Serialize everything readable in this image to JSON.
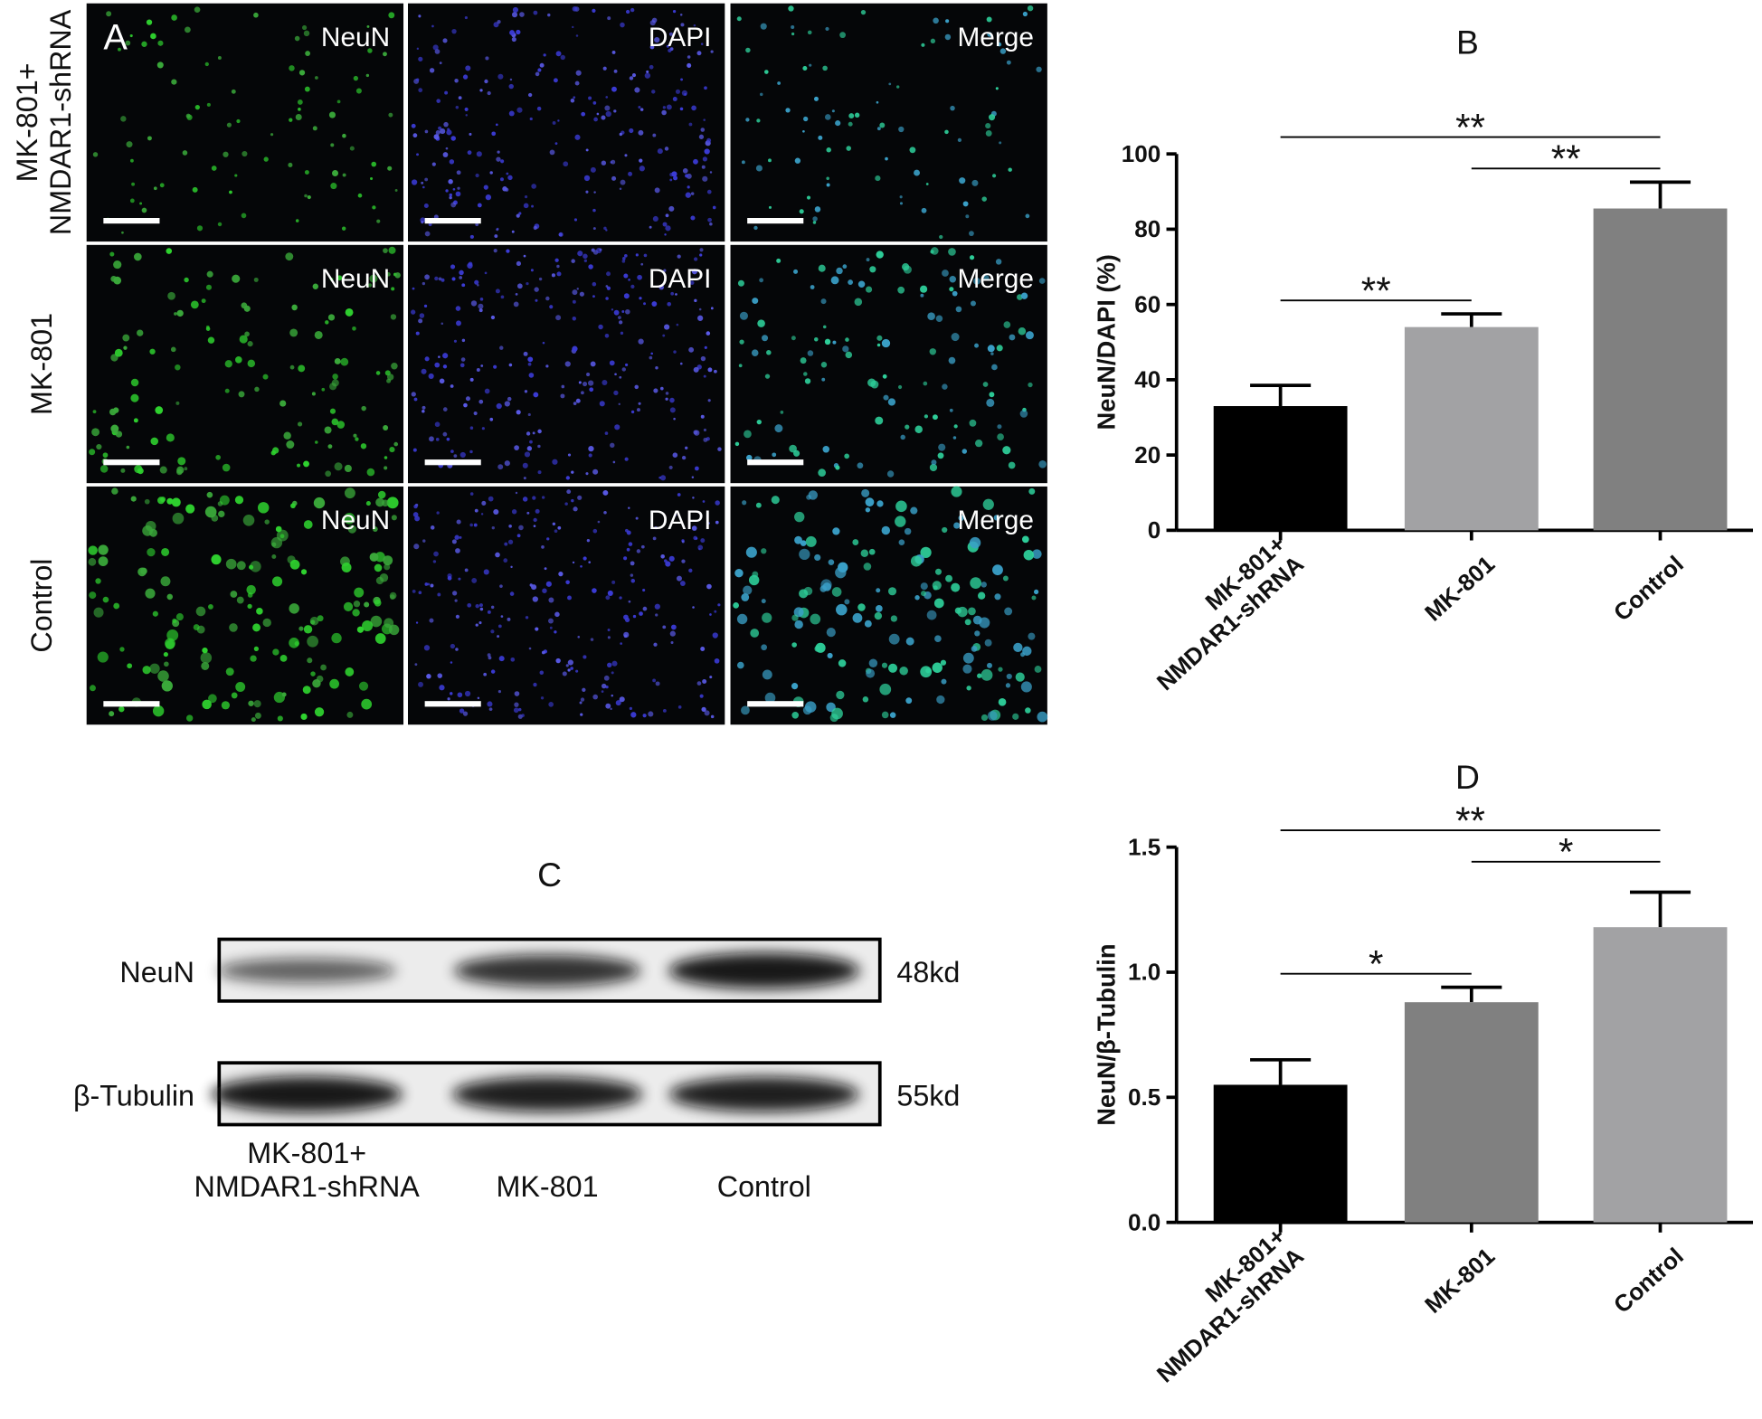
{
  "panel_a": {
    "label": "A",
    "rows": [
      "MK-801+\nNMDAR1-shRNA",
      "MK-801",
      "Control"
    ],
    "columns": [
      "NeuN",
      "DAPI",
      "Merge"
    ]
  },
  "panel_c": {
    "label": "C",
    "bands": [
      {
        "label": "NeuN",
        "size": "48kd"
      },
      {
        "label": "β-Tubulin",
        "size": "55kd"
      }
    ],
    "lanes": [
      "MK-801+\nNMDAR1-shRNA",
      "MK-801",
      "Control"
    ]
  },
  "chart_data": [
    {
      "type": "bar",
      "title": "B",
      "y_label": "NeuN/DAPI (%)",
      "categories": [
        "MK-801+\nNMDAR1-shRNA",
        "MK-801",
        "Control"
      ],
      "values": [
        33,
        54,
        85.5
      ],
      "errors": [
        5.5,
        3.5,
        7
      ],
      "colors": [
        "#000000",
        "#a2a2a4",
        "#808080"
      ],
      "ylim": [
        0,
        100
      ],
      "yticks": [
        0,
        20,
        40,
        60,
        80,
        100
      ],
      "annotations": [
        {
          "text": "**"
        },
        {
          "text": "**"
        },
        {
          "text": "**"
        }
      ]
    },
    {
      "type": "bar",
      "title": "D",
      "y_label": "NeuN/β-Tubulin",
      "categories": [
        "MK-801+\nNMDAR1-shRNA",
        "MK-801",
        "Control"
      ],
      "values": [
        0.55,
        0.88,
        1.18
      ],
      "errors": [
        0.1,
        0.06,
        0.14
      ],
      "colors": [
        "#000000",
        "#808080",
        "#a2a2a4"
      ],
      "ylim": [
        0,
        1.5
      ],
      "yticks": [
        {
          "value": 0,
          "label": "0.0"
        },
        0.5,
        {
          "value": 1,
          "label": "1.0"
        },
        {
          "value": 1.5,
          "label": "1.5"
        }
      ],
      "annotations": [
        {
          "text": "**"
        },
        {
          "text": "*"
        },
        {
          "text": "*"
        }
      ]
    }
  ]
}
